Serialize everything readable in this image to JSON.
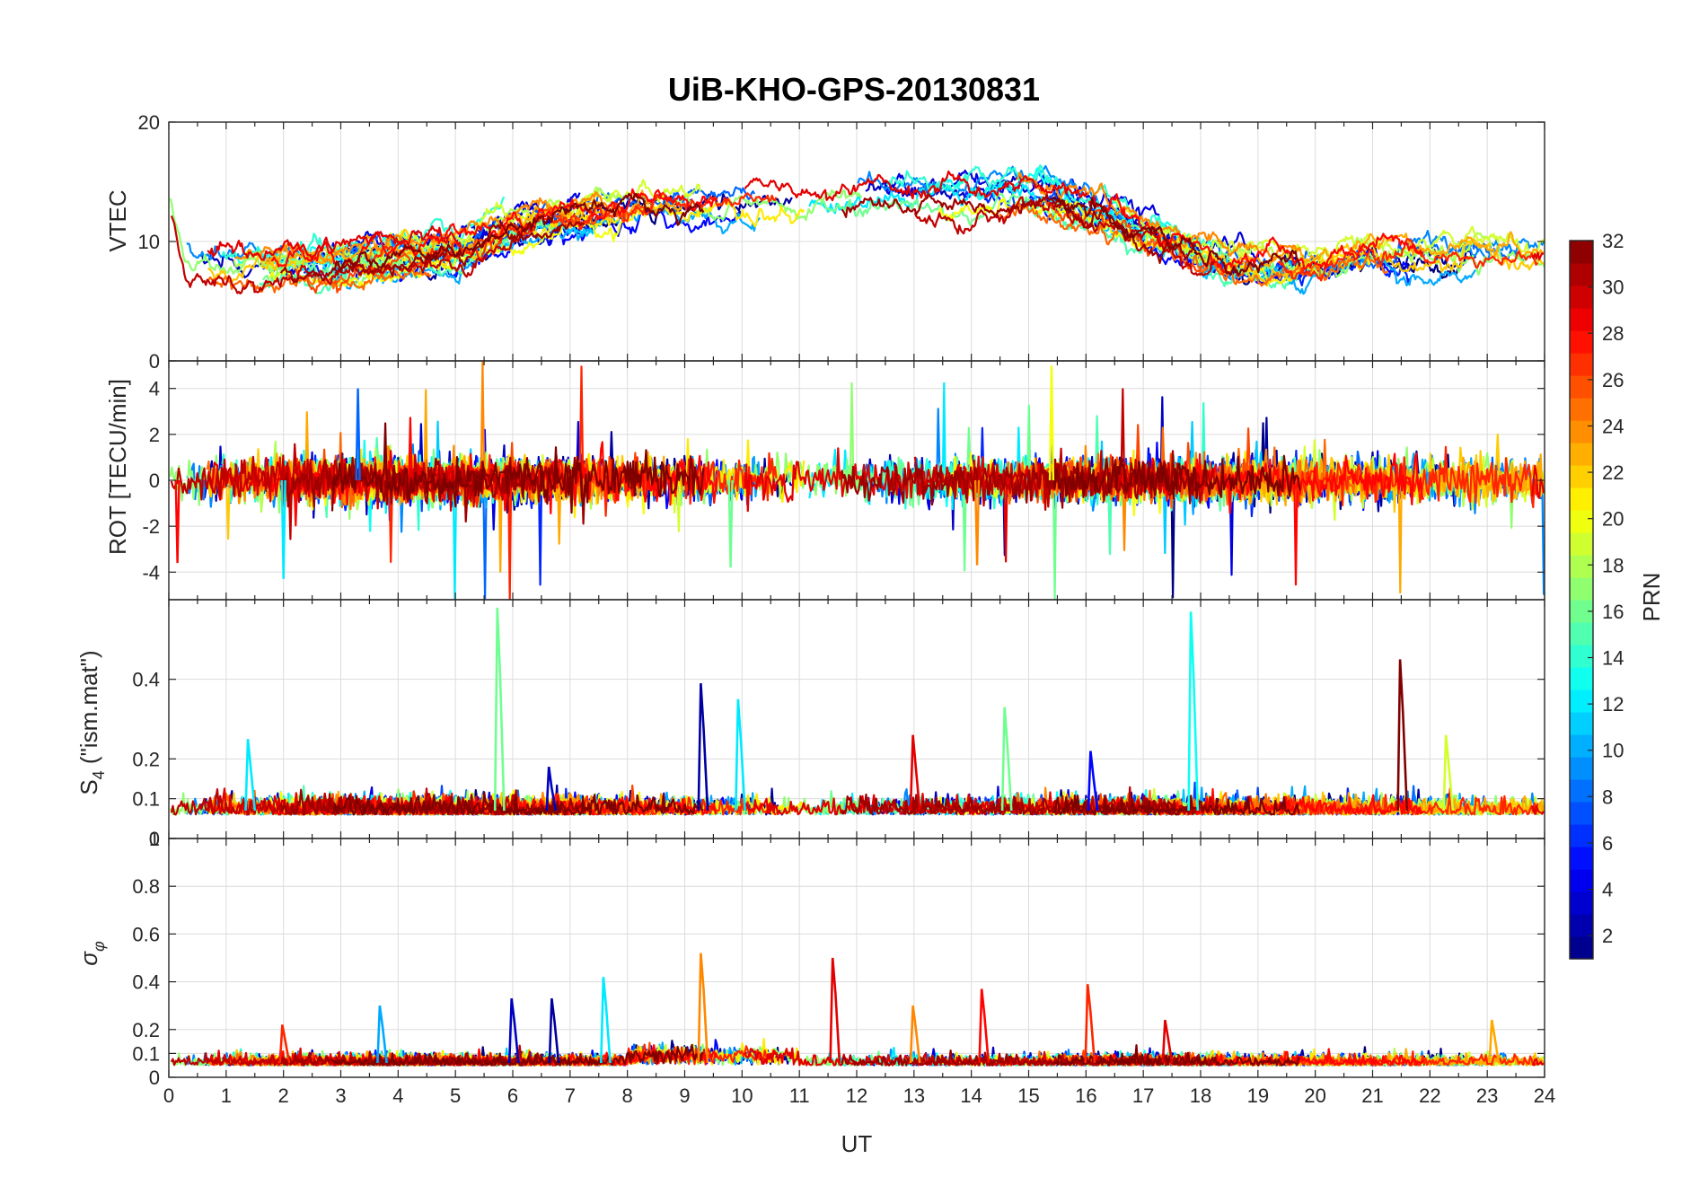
{
  "figure": {
    "title": "UiB-KHO-GPS-20130831",
    "xlabel": "UT",
    "x_ticks": [
      "0",
      "1",
      "2",
      "3",
      "4",
      "5",
      "6",
      "7",
      "8",
      "9",
      "10",
      "11",
      "12",
      "13",
      "14",
      "15",
      "16",
      "17",
      "18",
      "19",
      "20",
      "21",
      "22",
      "23",
      "24"
    ]
  },
  "colorbar": {
    "label": "PRN",
    "colormap": "jet",
    "range": [
      1,
      32
    ],
    "levels": 32,
    "tick_labels": [
      "2",
      "4",
      "6",
      "8",
      "10",
      "12",
      "14",
      "16",
      "18",
      "20",
      "22",
      "24",
      "26",
      "28",
      "30",
      "32"
    ]
  },
  "chart_data": [
    {
      "type": "line",
      "panel": "vtec",
      "ylabel": "VTEC",
      "xlim": [
        0,
        24
      ],
      "ylim": [
        0,
        20
      ],
      "y_ticks": [
        "0",
        "10",
        "20"
      ],
      "grid": true,
      "series_by": "PRN (colorbar)",
      "trend_points": {
        "x": [
          0,
          0.3,
          1,
          2,
          3,
          4,
          5,
          6,
          7,
          8,
          9,
          10,
          11,
          12,
          13,
          14,
          15,
          16,
          17,
          18,
          19,
          20,
          21,
          22,
          23,
          24
        ],
        "y": [
          14,
          8.5,
          7.5,
          8,
          8,
          9,
          9,
          11,
          12,
          13,
          13,
          13,
          13,
          13.5,
          13.5,
          13.5,
          14,
          13,
          11,
          9,
          8,
          8,
          9,
          8.5,
          8.5,
          8
        ]
      }
    },
    {
      "type": "line",
      "panel": "rot",
      "ylabel": "ROT [TECU/min]",
      "xlim": [
        0,
        24
      ],
      "ylim": [
        -5.2,
        5.2
      ],
      "y_ticks": [
        "-4",
        "-2",
        "0",
        "2",
        "4"
      ],
      "grid": true,
      "series_by": "PRN (colorbar)",
      "notable_values": {
        "x": [
          3.3,
          2.0,
          9.8,
          15.4,
          14.1,
          0.15
        ],
        "y": [
          4.0,
          -4.3,
          -3.8,
          5.0,
          -3.7,
          -3.6
        ]
      }
    },
    {
      "type": "line",
      "panel": "s4",
      "ylabel_main": "S",
      "ylabel_sub": "4",
      "ylabel_tail": " (\"ism.mat\")",
      "xlim": [
        0,
        24
      ],
      "ylim": [
        0,
        0.6
      ],
      "y_ticks": [
        "0",
        "0.1",
        "0.2",
        "0.4"
      ],
      "grid": true,
      "series_by": "PRN (colorbar)",
      "baseline": 0.07,
      "peaks": {
        "x": [
          5.75,
          9.3,
          9.95,
          17.85,
          21.5,
          14.6,
          13.0,
          22.3,
          1.4,
          6.65,
          16.1
        ],
        "y": [
          0.58,
          0.39,
          0.35,
          0.57,
          0.45,
          0.33,
          0.26,
          0.26,
          0.25,
          0.18,
          0.22
        ],
        "prn": [
          16,
          2,
          12,
          13,
          32,
          16,
          29,
          19,
          12,
          3,
          5
        ]
      }
    },
    {
      "type": "line",
      "panel": "sigma",
      "ylabel_main": "σ",
      "ylabel_sub": "φ",
      "xlim": [
        0,
        24
      ],
      "ylim": [
        0,
        1
      ],
      "y_ticks": [
        "0",
        "0.1",
        "0.2",
        "0.4",
        "0.6",
        "0.8",
        "1"
      ],
      "grid": true,
      "series_by": "PRN (colorbar)",
      "baseline": 0.06,
      "peaks": {
        "x": [
          9.3,
          11.6,
          16.05,
          14.2,
          13.0,
          6.0,
          6.7,
          7.6,
          23.1,
          17.4,
          2.0,
          3.7
        ],
        "y": [
          0.52,
          0.5,
          0.39,
          0.37,
          0.3,
          0.33,
          0.33,
          0.42,
          0.24,
          0.24,
          0.22,
          0.3
        ],
        "prn": [
          24,
          29,
          27,
          28,
          24,
          3,
          2,
          12,
          23,
          29,
          27,
          10
        ]
      }
    }
  ]
}
